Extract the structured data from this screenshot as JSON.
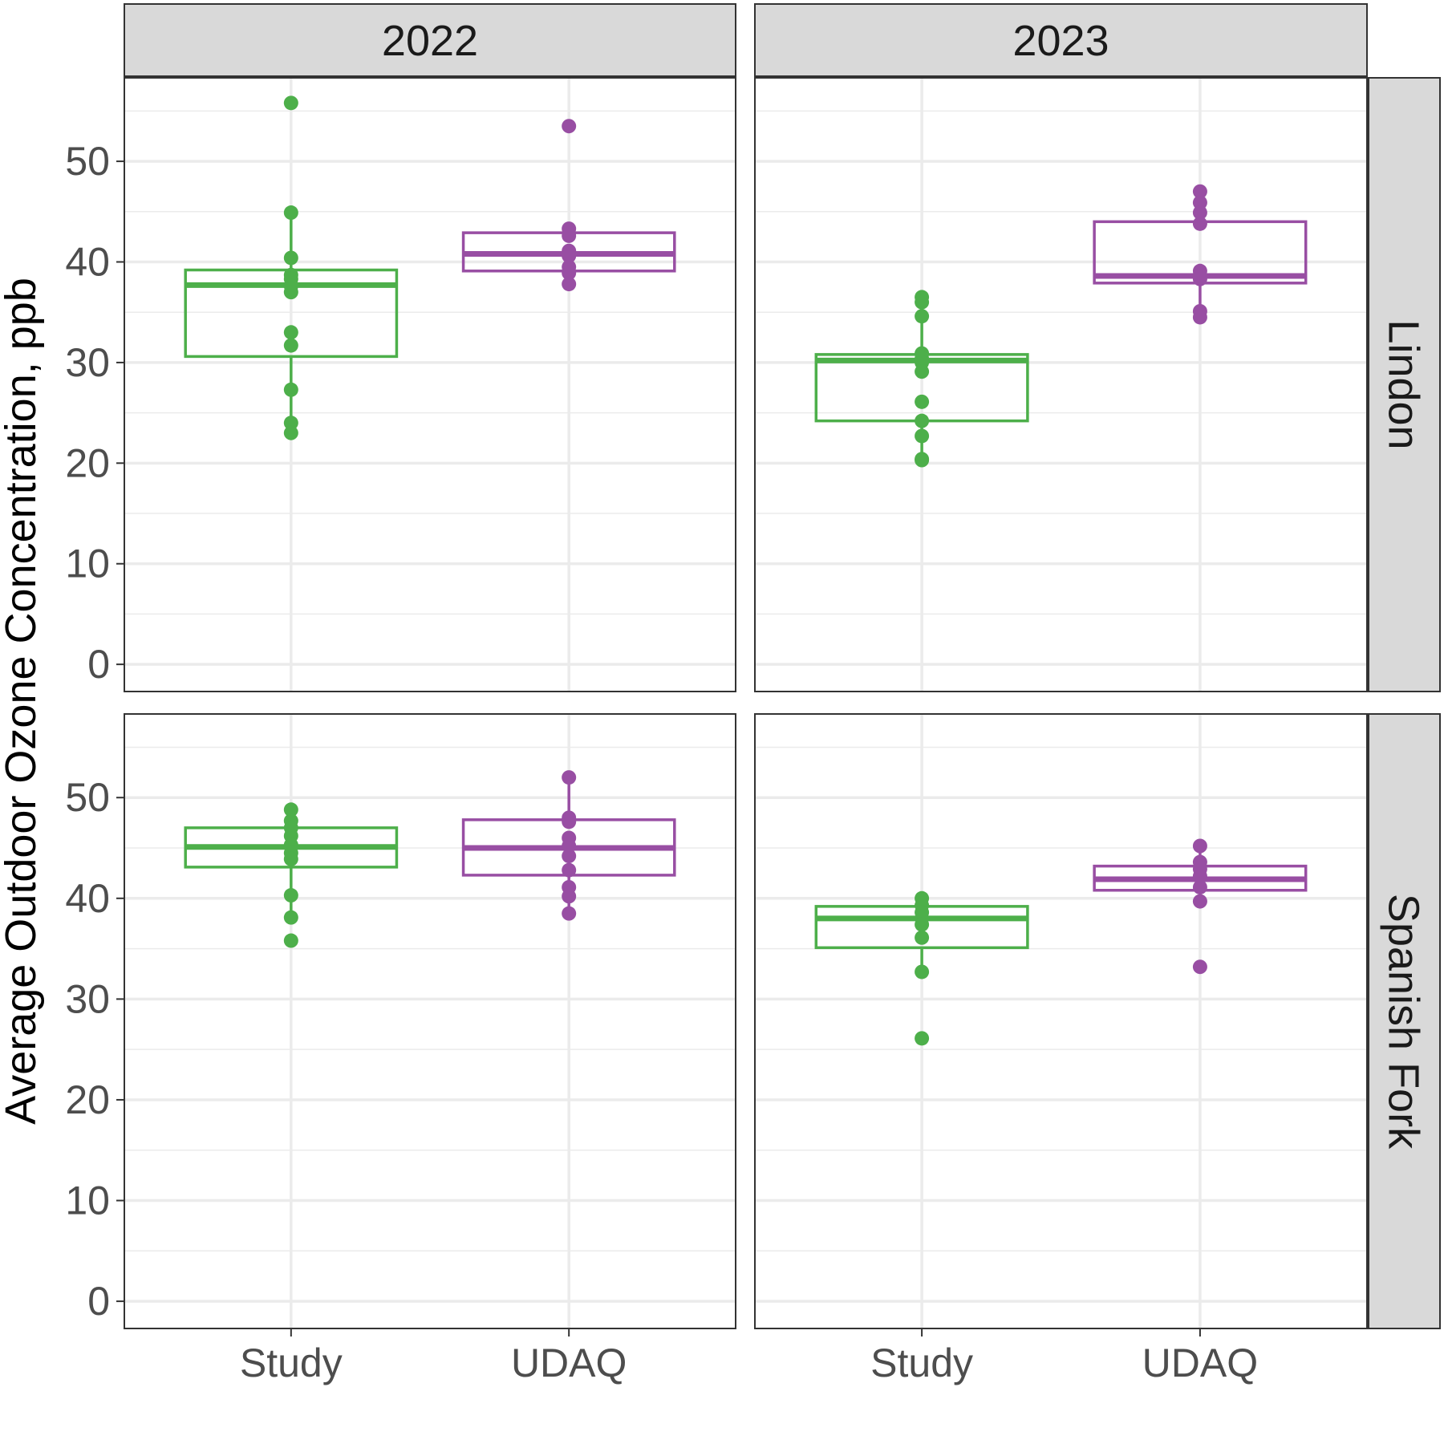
{
  "chart_data": {
    "type": "box",
    "ylabel": "Average Outdoor Ozone Concentration, ppb",
    "xlabel": "",
    "categories": [
      "Study",
      "UDAQ"
    ],
    "columns": [
      "2022",
      "2023"
    ],
    "rows": [
      "Lindon",
      "Spanish Fork"
    ],
    "y_ticks": [
      0,
      10,
      20,
      30,
      40,
      50
    ],
    "ylim": [
      -2.7,
      58.3
    ],
    "grid": true,
    "colors": {
      "Study": "#4daf4a",
      "UDAQ": "#984ea3"
    },
    "panels": [
      {
        "year": "2022",
        "site": "Lindon",
        "groups": [
          {
            "category": "Study",
            "q1": 30.6,
            "median": 37.7,
            "q3": 39.2,
            "points": [
              55.8,
              44.9,
              40.4,
              38.7,
              38.3,
              37.6,
              37.0,
              33.0,
              31.7,
              27.3,
              24.0,
              23.0
            ]
          },
          {
            "category": "UDAQ",
            "q1": 39.1,
            "median": 40.8,
            "q3": 42.9,
            "points": [
              53.5,
              43.3,
              42.6,
              41.1,
              40.6,
              39.5,
              38.9,
              37.8
            ]
          }
        ]
      },
      {
        "year": "2023",
        "site": "Lindon",
        "groups": [
          {
            "category": "Study",
            "q1": 24.2,
            "median": 30.2,
            "q3": 30.8,
            "points": [
              36.5,
              36.0,
              34.6,
              30.9,
              30.4,
              30.0,
              29.1,
              26.1,
              24.2,
              22.7,
              20.4,
              20.3
            ]
          },
          {
            "category": "UDAQ",
            "q1": 37.9,
            "median": 38.6,
            "q3": 44.0,
            "points": [
              47.0,
              45.9,
              44.9,
              43.8,
              39.1,
              38.7,
              38.3,
              35.1,
              34.5
            ]
          }
        ]
      },
      {
        "year": "2022",
        "site": "Spanish Fork",
        "groups": [
          {
            "category": "Study",
            "q1": 43.1,
            "median": 45.1,
            "q3": 47.0,
            "points": [
              48.8,
              47.7,
              47.0,
              46.2,
              45.3,
              44.5,
              43.9,
              40.3,
              38.1,
              35.8
            ]
          },
          {
            "category": "UDAQ",
            "q1": 42.3,
            "median": 45.0,
            "q3": 47.8,
            "points": [
              52.0,
              48.0,
              47.6,
              46.0,
              45.2,
              44.2,
              42.8,
              41.1,
              40.2,
              38.5
            ]
          }
        ]
      },
      {
        "year": "2023",
        "site": "Spanish Fork",
        "groups": [
          {
            "category": "Study",
            "q1": 35.1,
            "median": 38.0,
            "q3": 39.2,
            "points": [
              40.0,
              39.3,
              38.6,
              37.4,
              36.1,
              32.7,
              26.1
            ]
          },
          {
            "category": "UDAQ",
            "q1": 40.8,
            "median": 41.9,
            "q3": 43.2,
            "points": [
              45.2,
              43.6,
              42.9,
              42.2,
              41.1,
              39.7,
              33.2
            ]
          }
        ]
      }
    ]
  }
}
